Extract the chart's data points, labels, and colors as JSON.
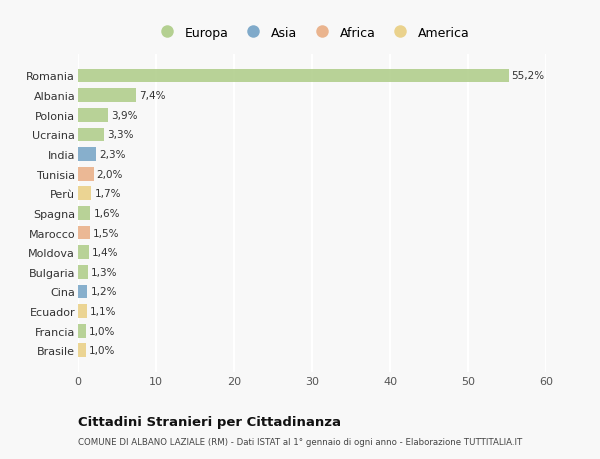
{
  "countries": [
    "Romania",
    "Albania",
    "Polonia",
    "Ucraina",
    "India",
    "Tunisia",
    "Perù",
    "Spagna",
    "Marocco",
    "Moldova",
    "Bulgaria",
    "Cina",
    "Ecuador",
    "Francia",
    "Brasile"
  ],
  "values": [
    55.2,
    7.4,
    3.9,
    3.3,
    2.3,
    2.0,
    1.7,
    1.6,
    1.5,
    1.4,
    1.3,
    1.2,
    1.1,
    1.0,
    1.0
  ],
  "labels": [
    "55,2%",
    "7,4%",
    "3,9%",
    "3,3%",
    "2,3%",
    "2,0%",
    "1,7%",
    "1,6%",
    "1,5%",
    "1,4%",
    "1,3%",
    "1,2%",
    "1,1%",
    "1,0%",
    "1,0%"
  ],
  "continents": [
    "Europa",
    "Europa",
    "Europa",
    "Europa",
    "Asia",
    "Africa",
    "America",
    "Europa",
    "Africa",
    "Europa",
    "Europa",
    "Asia",
    "America",
    "Europa",
    "America"
  ],
  "continent_colors": {
    "Europa": "#a8c97f",
    "Asia": "#6b9dc2",
    "Africa": "#e8a87c",
    "America": "#e8cc7a"
  },
  "legend_items": [
    "Europa",
    "Asia",
    "Africa",
    "America"
  ],
  "xlim": [
    0,
    60
  ],
  "xticks": [
    0,
    10,
    20,
    30,
    40,
    50,
    60
  ],
  "title": "Cittadini Stranieri per Cittadinanza",
  "subtitle": "COMUNE DI ALBANO LAZIALE (RM) - Dati ISTAT al 1° gennaio di ogni anno - Elaborazione TUTTITALIA.IT",
  "bg_color": "#f8f8f8",
  "grid_color": "#ffffff",
  "bar_height": 0.7
}
